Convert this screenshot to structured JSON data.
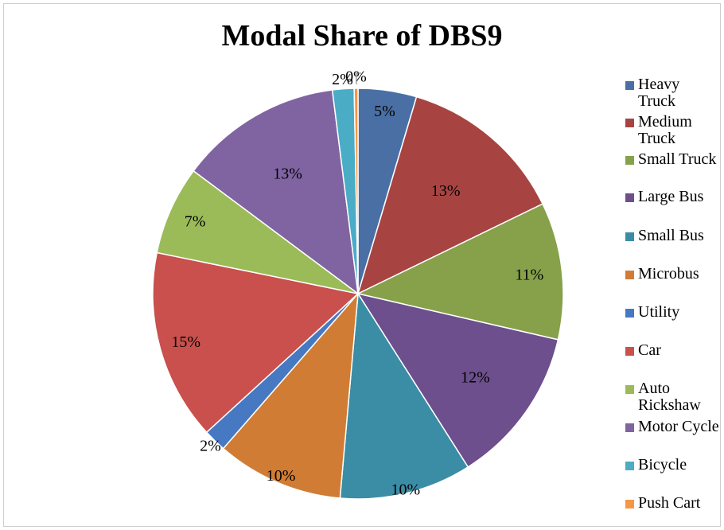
{
  "chart_data": {
    "type": "pie",
    "title": "Modal Share of DBS9",
    "legend_position": "right",
    "slices": [
      {
        "name": "Heavy Truck",
        "value": 4.6,
        "label": "5%",
        "color": "#4a6fa5"
      },
      {
        "name": "Medium Truck",
        "value": 13.2,
        "label": "13%",
        "color": "#a74442"
      },
      {
        "name": "Small Truck",
        "value": 10.8,
        "label": "11%",
        "color": "#86a14a"
      },
      {
        "name": "Large Bus",
        "value": 12.4,
        "label": "12%",
        "color": "#6c4f8c"
      },
      {
        "name": "Small Bus",
        "value": 10.4,
        "label": "10%",
        "color": "#3b8da5"
      },
      {
        "name": "Microbus",
        "value": 10.0,
        "label": "10%",
        "color": "#d17c34"
      },
      {
        "name": "Utility",
        "value": 1.8,
        "label": "2%",
        "color": "#4778c2"
      },
      {
        "name": "Car",
        "value": 15.0,
        "label": "15%",
        "color": "#c9504d"
      },
      {
        "name": "Auto Rickshaw",
        "value": 7.0,
        "label": "7%",
        "color": "#9bbb59"
      },
      {
        "name": "Motor Cycle",
        "value": 12.8,
        "label": "13%",
        "color": "#8064a2"
      },
      {
        "name": "Bicycle",
        "value": 1.7,
        "label": "2%",
        "color": "#4bacc6"
      },
      {
        "name": "Push Cart",
        "value": 0.3,
        "label": "0%",
        "color": "#f79646"
      }
    ]
  }
}
